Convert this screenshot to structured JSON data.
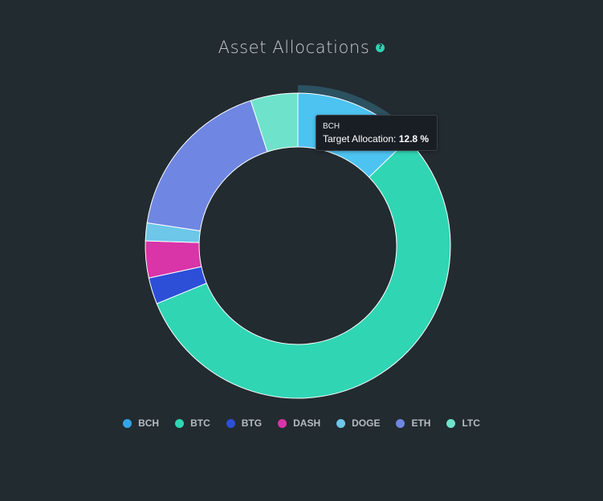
{
  "header": {
    "title": "Asset Allocations",
    "help_icon": "question-circle-icon"
  },
  "chart_data": {
    "type": "pie",
    "variant": "donut",
    "title": "Asset Allocations",
    "unit": "%",
    "categories": [
      "BCH",
      "BTC",
      "BTG",
      "DASH",
      "DOGE",
      "ETH",
      "LTC"
    ],
    "values": [
      12.8,
      56.0,
      2.8,
      3.9,
      1.9,
      17.6,
      5.0
    ],
    "colors": [
      "#4dc3f1",
      "#30d5b4",
      "#2d4fd8",
      "#d934a8",
      "#6cc7e8",
      "#6f87e2",
      "#6fe2cb"
    ],
    "hovered_category": "BCH",
    "legend_position": "bottom"
  },
  "tooltip": {
    "name": "BCH",
    "label": "Target Allocation:",
    "value": "12.8 %"
  },
  "legend": {
    "items": [
      {
        "label": "BCH",
        "color": "#33a4e6"
      },
      {
        "label": "BTC",
        "color": "#30d5b4"
      },
      {
        "label": "BTG",
        "color": "#2d4fd8"
      },
      {
        "label": "DASH",
        "color": "#d934a8"
      },
      {
        "label": "DOGE",
        "color": "#6cc7e8"
      },
      {
        "label": "ETH",
        "color": "#6f87e2"
      },
      {
        "label": "LTC",
        "color": "#6fe2cb"
      }
    ]
  }
}
